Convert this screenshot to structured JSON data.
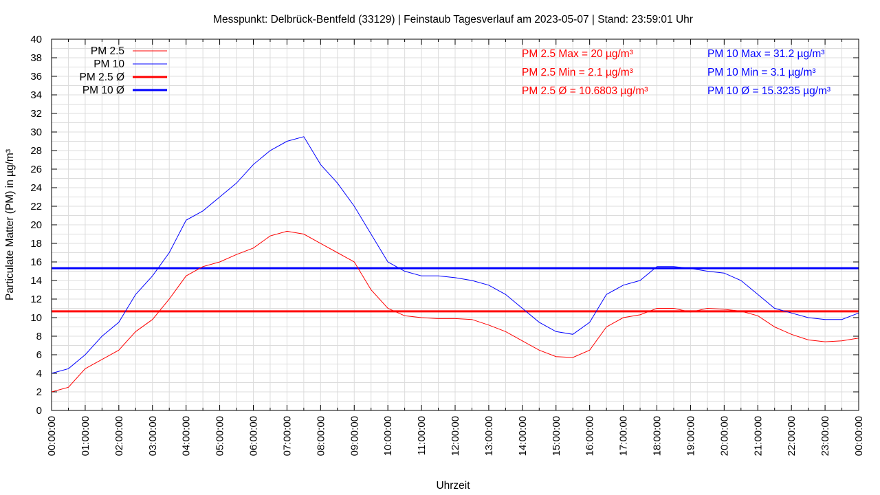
{
  "chart_data": {
    "type": "line",
    "title": "Messpunkt: Delbrück-Bentfeld (33129) | Feinstaub Tagesverlauf am 2023-05-07 | Stand: 23:59:01 Uhr",
    "xlabel": "Uhrzeit",
    "ylabel": "Particulate Matter (PM) in µg/m³",
    "ylim": [
      0,
      40
    ],
    "yticks": [
      0,
      2,
      4,
      6,
      8,
      10,
      12,
      14,
      16,
      18,
      20,
      22,
      24,
      26,
      28,
      30,
      32,
      34,
      36,
      38,
      40
    ],
    "xticks": [
      "00:00:00",
      "01:00:00",
      "02:00:00",
      "03:00:00",
      "04:00:00",
      "05:00:00",
      "06:00:00",
      "07:00:00",
      "08:00:00",
      "09:00:00",
      "10:00:00",
      "11:00:00",
      "12:00:00",
      "13:00:00",
      "14:00:00",
      "15:00:00",
      "16:00:00",
      "17:00:00",
      "18:00:00",
      "19:00:00",
      "20:00:00",
      "21:00:00",
      "22:00:00",
      "23:00:00",
      "00:00:00"
    ],
    "x_hours_step": 0.5,
    "grid": true,
    "legend_position": "top-left",
    "series": [
      {
        "name": "PM 2.5",
        "color": "#ff0000",
        "values": [
          2,
          2.5,
          4.5,
          5.5,
          6.5,
          8.5,
          9.8,
          12,
          14.5,
          15.5,
          16,
          16.8,
          17.5,
          18.8,
          19.3,
          19,
          18,
          17,
          16,
          13,
          11,
          10.2,
          10,
          9.9,
          9.9,
          9.8,
          9.2,
          8.5,
          7.5,
          6.5,
          5.8,
          5.7,
          6.5,
          9,
          10,
          10.3,
          11,
          11,
          10.6,
          11,
          10.9,
          10.7,
          10.2,
          9,
          8.2,
          7.6,
          7.4,
          7.5,
          7.8
        ]
      },
      {
        "name": "PM 10",
        "color": "#0000ff",
        "values": [
          4,
          4.5,
          6,
          8,
          9.5,
          12.5,
          14.5,
          17,
          20.5,
          21.5,
          23,
          24.5,
          26.5,
          28,
          29,
          29.5,
          26.5,
          24.5,
          22,
          19,
          16,
          15,
          14.5,
          14.5,
          14.3,
          14,
          13.5,
          12.5,
          11,
          9.5,
          8.5,
          8.2,
          9.5,
          12.5,
          13.5,
          14,
          15.5,
          15.5,
          15.3,
          15,
          14.8,
          14,
          12.5,
          11,
          10.5,
          10,
          9.8,
          9.8,
          10.5
        ]
      }
    ],
    "averages": [
      {
        "name": "PM 2.5 Ø",
        "color": "#ff0000",
        "value": 10.6803
      },
      {
        "name": "PM 10 Ø",
        "color": "#0000ff",
        "value": 15.3235
      }
    ],
    "legend": [
      "PM 2.5",
      "PM 10",
      "PM 2.5 Ø",
      "PM 10 Ø"
    ],
    "annotations": {
      "pm25": [
        "PM 2.5 Max = 20 µg/m³",
        "PM 2.5 Min = 2.1 µg/m³",
        "PM 2.5 Ø = 10.6803 µg/m³"
      ],
      "pm10": [
        "PM 10 Max = 31.2 µg/m³",
        "PM 10 Min = 3.1 µg/m³",
        "PM 10 Ø = 15.3235 µg/m³"
      ]
    }
  }
}
